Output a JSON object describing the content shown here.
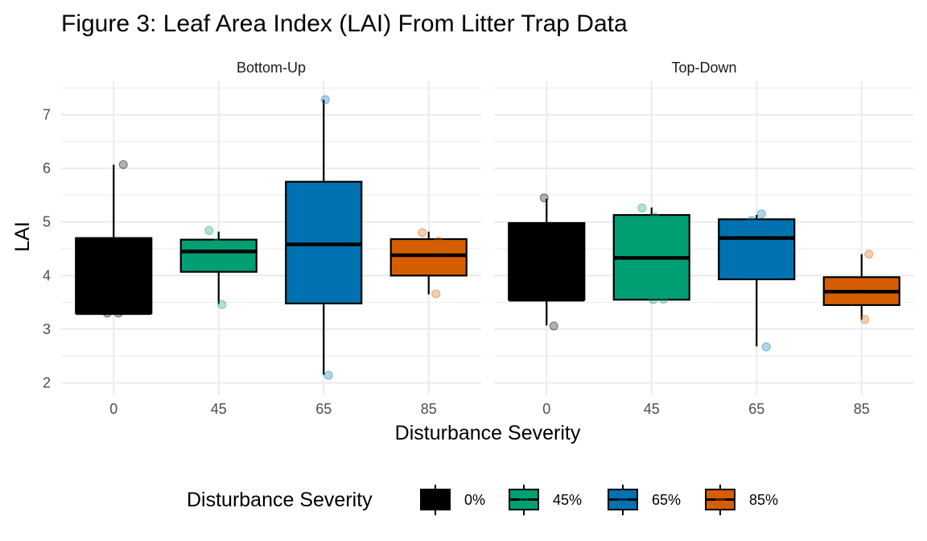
{
  "chart_data": {
    "type": "boxplot",
    "title": "Figure 3:  Leaf Area Index (LAI) From Litter Trap Data",
    "xlabel": "Disturbance Severity",
    "ylabel": "LAI",
    "ylim": [
      1.9,
      7.5
    ],
    "y_ticks": [
      "2",
      "3",
      "4",
      "5",
      "6",
      "7"
    ],
    "categories": [
      "0",
      "45",
      "65",
      "85"
    ],
    "grid": true,
    "legend": {
      "title": "Disturbance Severity",
      "position": "bottom",
      "labels": [
        "0%",
        "45%",
        "65%",
        "85%"
      ]
    },
    "colors": [
      "#000000",
      "#009E73",
      "#0072B2",
      "#D55E00"
    ],
    "panels": [
      {
        "name": "Bottom-Up",
        "boxes": [
          {
            "category": "0",
            "min": 3.3,
            "q1": 3.3,
            "median": 3.3,
            "q3": 4.7,
            "max": 6.07
          },
          {
            "category": "45",
            "min": 3.47,
            "q1": 4.07,
            "median": 4.45,
            "q3": 4.67,
            "max": 4.82
          },
          {
            "category": "65",
            "min": 2.15,
            "q1": 3.48,
            "median": 4.58,
            "q3": 5.75,
            "max": 7.28
          },
          {
            "category": "85",
            "min": 3.65,
            "q1": 4.0,
            "median": 4.38,
            "q3": 4.68,
            "max": 4.82
          }
        ],
        "points": [
          {
            "category": "0",
            "values": [
              3.3,
              3.3,
              6.07
            ]
          },
          {
            "category": "45",
            "values": [
              4.6,
              4.28,
              4.84,
              3.46
            ]
          },
          {
            "category": "65",
            "values": [
              7.28,
              5.22,
              3.93,
              2.14
            ]
          },
          {
            "category": "85",
            "values": [
              4.8,
              4.64,
              4.12,
              3.66
            ]
          }
        ]
      },
      {
        "name": "Top-Down",
        "boxes": [
          {
            "category": "0",
            "min": 3.07,
            "q1": 3.55,
            "median": 3.55,
            "q3": 4.98,
            "max": 5.43
          },
          {
            "category": "45",
            "min": 3.55,
            "q1": 3.55,
            "median": 4.33,
            "q3": 5.13,
            "max": 5.27
          },
          {
            "category": "65",
            "min": 2.68,
            "q1": 3.93,
            "median": 4.7,
            "q3": 5.05,
            "max": 5.13
          },
          {
            "category": "85",
            "min": 3.18,
            "q1": 3.45,
            "median": 3.7,
            "q3": 3.97,
            "max": 4.4
          }
        ],
        "points": [
          {
            "category": "0",
            "values": [
              5.45,
              3.06
            ]
          },
          {
            "category": "45",
            "values": [
              5.26,
              5.09,
              3.55,
              3.56
            ]
          },
          {
            "category": "65",
            "values": [
              5.03,
              5.15,
              4.36,
              2.67
            ]
          },
          {
            "category": "85",
            "values": [
              3.82,
              4.4,
              3.54,
              3.18
            ]
          }
        ]
      }
    ]
  }
}
